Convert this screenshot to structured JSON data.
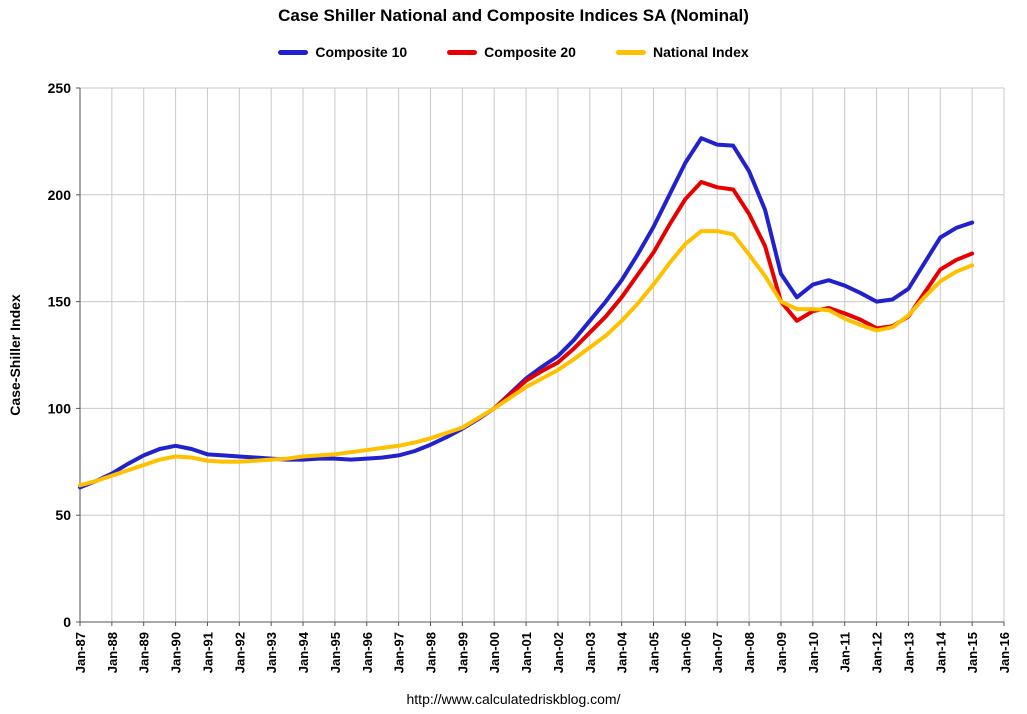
{
  "footer_url": "http://www.calculatedriskblog.com/",
  "chart_data": {
    "type": "line",
    "title": "Case Shiller National and Composite Indices SA (Nominal)",
    "xlabel": "",
    "ylabel": "Case-Shiller Index",
    "ylim": [
      0,
      250
    ],
    "yticks": [
      0,
      50,
      100,
      150,
      200,
      250
    ],
    "xlim": [
      1987,
      2016
    ],
    "xticks": [
      "Jan-87",
      "Jan-88",
      "Jan-89",
      "Jan-90",
      "Jan-91",
      "Jan-92",
      "Jan-93",
      "Jan-94",
      "Jan-95",
      "Jan-96",
      "Jan-97",
      "Jan-98",
      "Jan-99",
      "Jan-00",
      "Jan-01",
      "Jan-02",
      "Jan-03",
      "Jan-04",
      "Jan-05",
      "Jan-06",
      "Jan-07",
      "Jan-08",
      "Jan-09",
      "Jan-10",
      "Jan-11",
      "Jan-12",
      "Jan-13",
      "Jan-14",
      "Jan-15",
      "Jan-16"
    ],
    "grid": true,
    "legend_position": "top",
    "series": [
      {
        "name": "Composite 10",
        "color": "#2222cc",
        "x": [
          1987,
          1987.5,
          1988,
          1988.5,
          1989,
          1989.5,
          1990,
          1990.5,
          1991,
          1991.5,
          1992,
          1992.5,
          1993,
          1993.5,
          1994,
          1994.5,
          1995,
          1995.5,
          1996,
          1996.5,
          1997,
          1997.5,
          1998,
          1998.5,
          1999,
          1999.5,
          2000,
          2000.5,
          2001,
          2001.5,
          2002,
          2002.5,
          2003,
          2003.5,
          2004,
          2004.5,
          2005,
          2005.5,
          2006,
          2006.5,
          2007,
          2007.5,
          2008,
          2008.5,
          2009,
          2009.5,
          2010,
          2010.5,
          2011,
          2011.5,
          2012,
          2012.5,
          2013,
          2013.5,
          2014,
          2014.5,
          2015
        ],
        "y": [
          63,
          66,
          69.5,
          74,
          78,
          81,
          82.5,
          81,
          78.5,
          78,
          77.5,
          77,
          76.5,
          76,
          76,
          76.5,
          76.5,
          76,
          76.5,
          77,
          78,
          80,
          83,
          86.5,
          90.5,
          95,
          100,
          107,
          114,
          119.5,
          124.5,
          132,
          141,
          150,
          160,
          172,
          185,
          200,
          215,
          226.5,
          223.5,
          223,
          211,
          193,
          163,
          152,
          158,
          160,
          157.5,
          154,
          150,
          151,
          156,
          168,
          180,
          184.5,
          187
        ]
      },
      {
        "name": "Composite 20",
        "color": "#e80000",
        "x": [
          2000,
          2000.5,
          2001,
          2001.5,
          2002,
          2002.5,
          2003,
          2003.5,
          2004,
          2004.5,
          2005,
          2005.5,
          2006,
          2006.5,
          2007,
          2007.5,
          2008,
          2008.5,
          2009,
          2009.5,
          2010,
          2010.5,
          2011,
          2011.5,
          2012,
          2012.5,
          2013,
          2013.5,
          2014,
          2014.5,
          2015
        ],
        "y": [
          100,
          106.5,
          113,
          117.5,
          121.5,
          128,
          135.5,
          143,
          152,
          162.5,
          173,
          186,
          198,
          206,
          203.5,
          202.5,
          191,
          176,
          150,
          141,
          145.5,
          147,
          144.5,
          141.5,
          137.5,
          138.5,
          143,
          154,
          165,
          169.5,
          172.5
        ]
      },
      {
        "name": "National Index",
        "color": "#ffc000",
        "x": [
          1987,
          1987.5,
          1988,
          1988.5,
          1989,
          1989.5,
          1990,
          1990.5,
          1991,
          1991.5,
          1992,
          1992.5,
          1993,
          1993.5,
          1994,
          1994.5,
          1995,
          1995.5,
          1996,
          1996.5,
          1997,
          1997.5,
          1998,
          1998.5,
          1999,
          1999.5,
          2000,
          2000.5,
          2001,
          2001.5,
          2002,
          2002.5,
          2003,
          2003.5,
          2004,
          2004.5,
          2005,
          2005.5,
          2006,
          2006.5,
          2007,
          2007.5,
          2008,
          2008.5,
          2009,
          2009.5,
          2010,
          2010.5,
          2011,
          2011.5,
          2012,
          2012.5,
          2013,
          2013.5,
          2014,
          2014.5,
          2015
        ],
        "y": [
          64,
          66,
          68.5,
          71,
          73.5,
          76,
          77.5,
          77,
          75.5,
          75,
          75,
          75.5,
          76,
          76.5,
          77.5,
          78,
          78.5,
          79.5,
          80.5,
          81.5,
          82.5,
          84,
          86,
          88.5,
          91,
          95.5,
          100,
          105,
          110,
          114,
          118,
          123,
          128.5,
          134,
          141,
          149,
          158,
          168,
          177,
          183,
          183,
          181.5,
          172,
          162,
          150,
          146.5,
          146.5,
          146,
          142,
          139,
          136.5,
          138,
          143.5,
          152,
          159.5,
          164,
          167
        ]
      }
    ]
  }
}
